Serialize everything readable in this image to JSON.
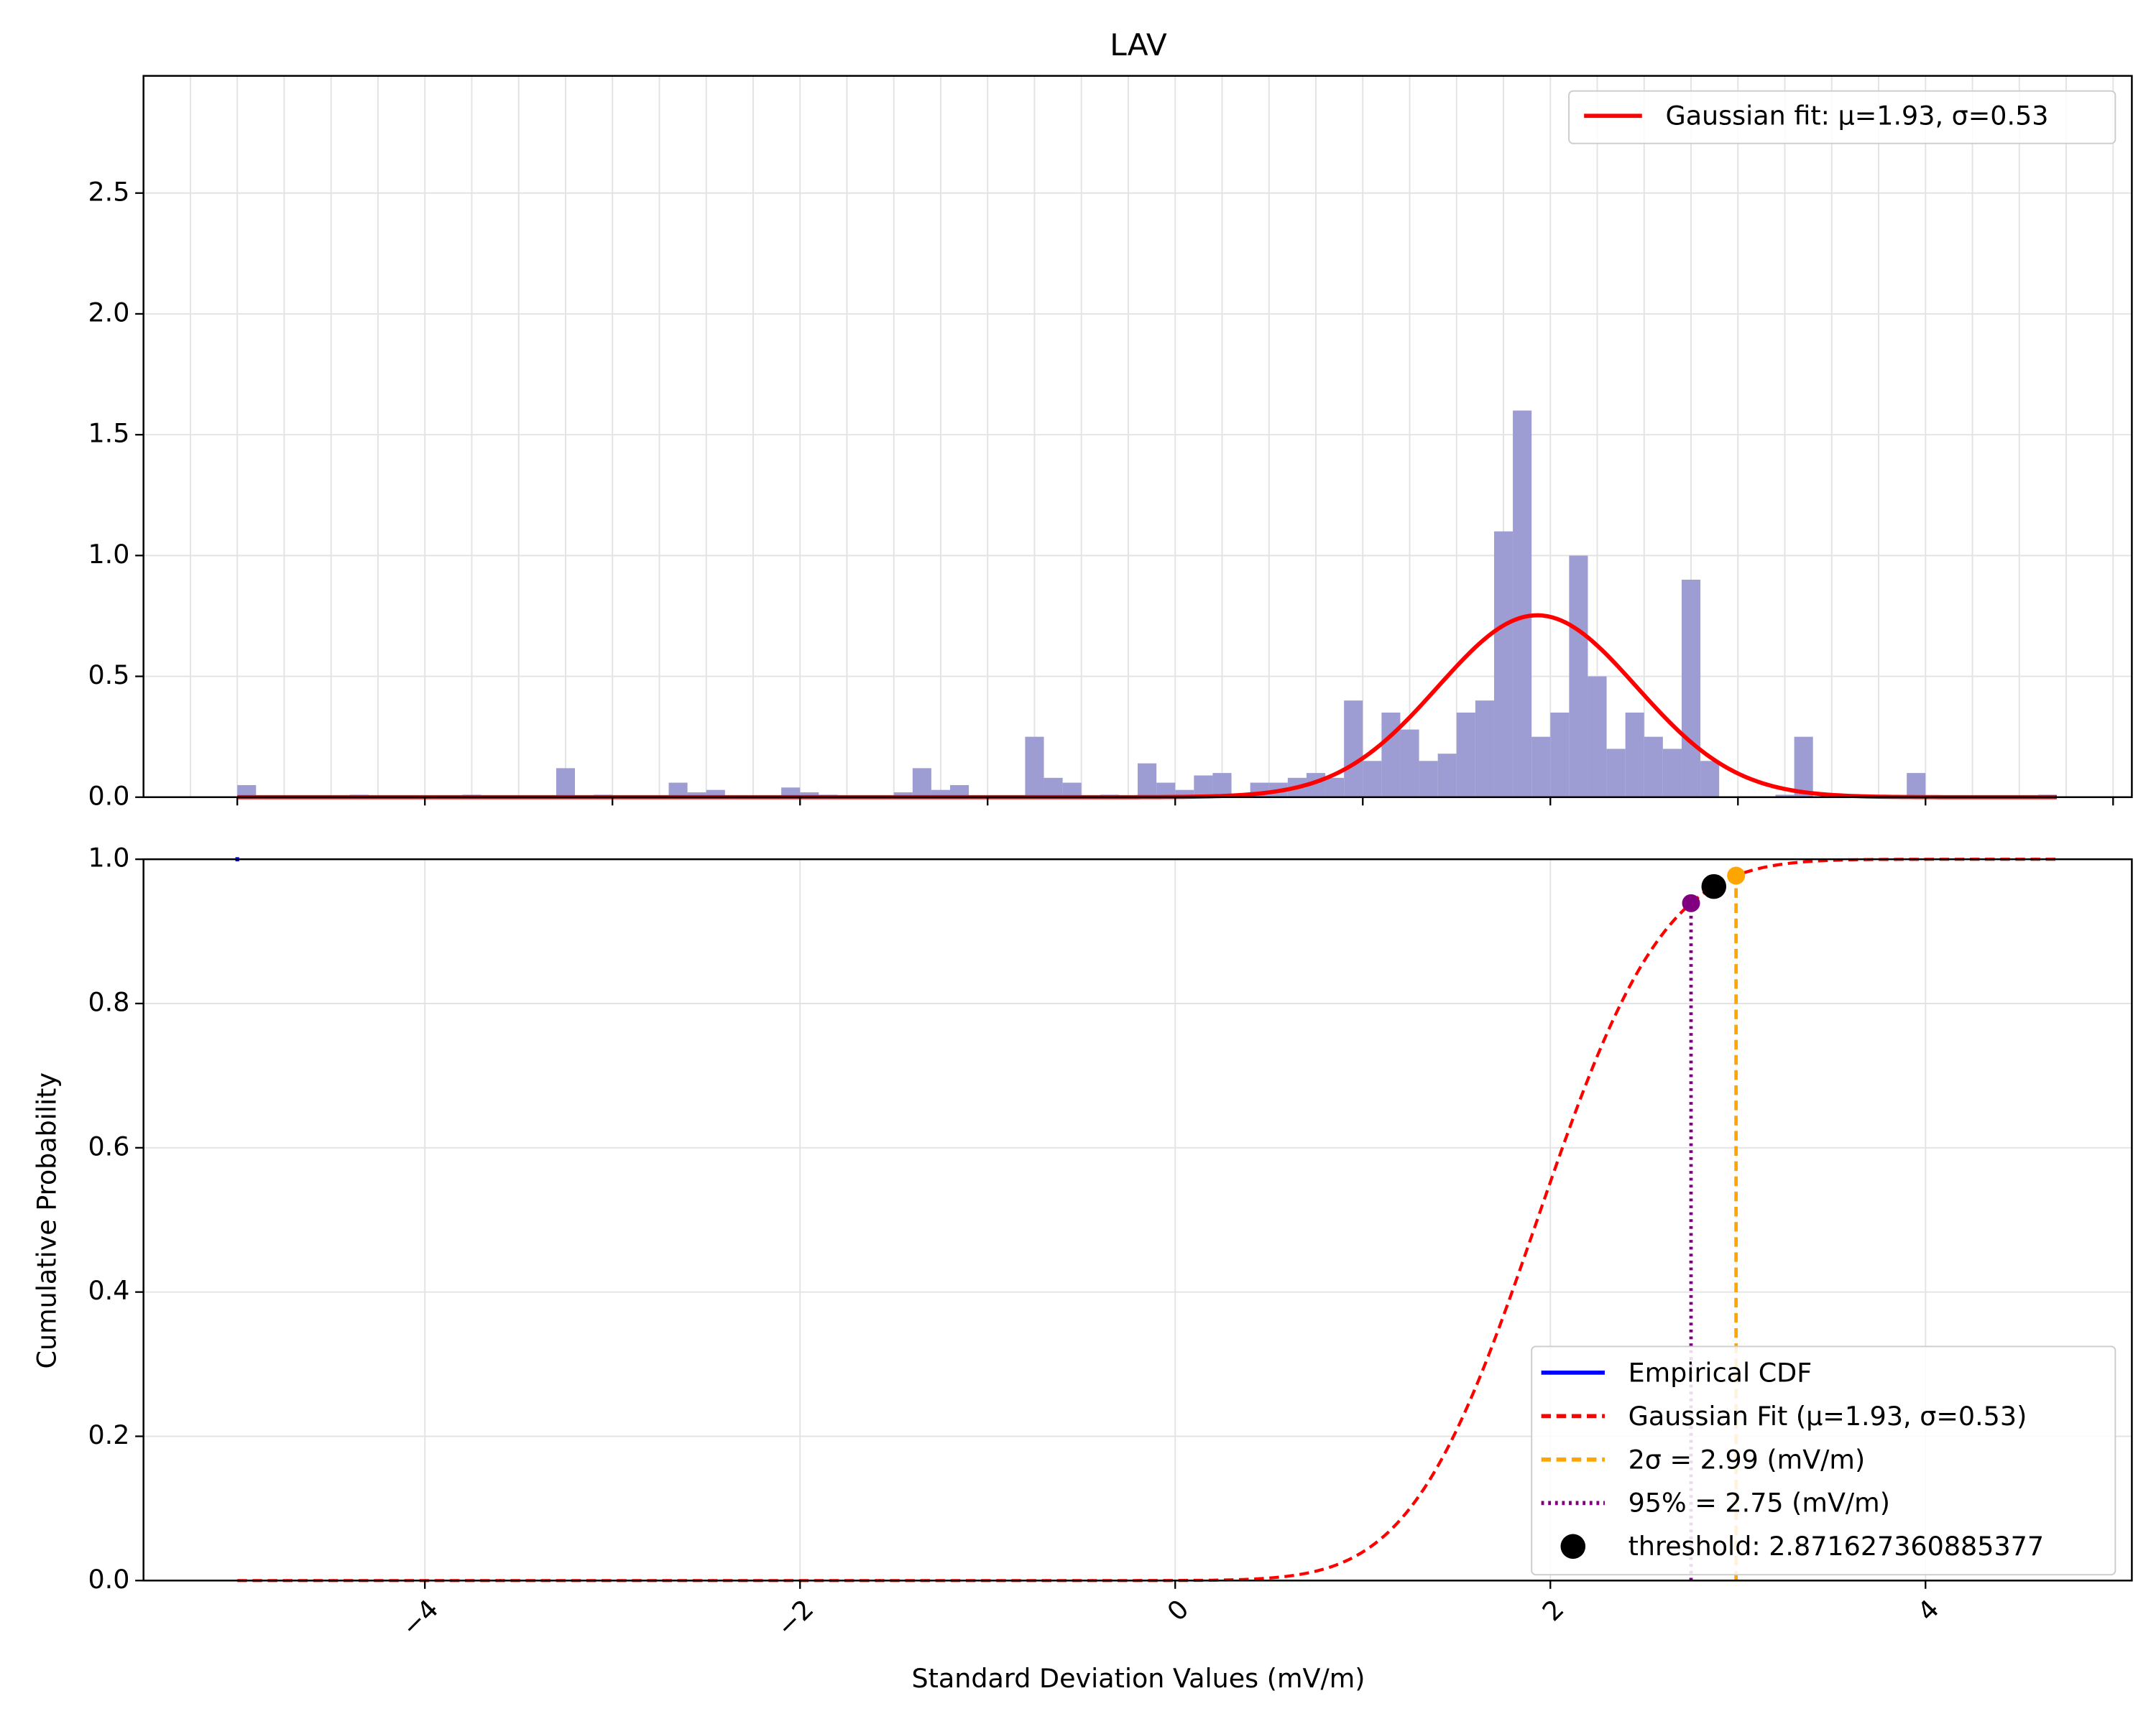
{
  "chart_data": [
    {
      "type": "histogram",
      "title": "LAV",
      "bins": [
        -5,
        -4.9,
        -4.8,
        -4.7,
        -4.6,
        -4.5,
        -4.4,
        -4.3,
        -4.2,
        -4.1,
        -4,
        -3.9,
        -3.8,
        -3.7,
        -3.6,
        -3.5,
        -3.4,
        -3.3,
        -3.2,
        -3.1,
        -3,
        -2.9,
        -2.8,
        -2.7,
        -2.6,
        -2.5,
        -2.4,
        -2.3,
        -2.2,
        -2.1,
        -2,
        -1.9,
        -1.8,
        -1.7,
        -1.6,
        -1.5,
        -1.4,
        -1.3,
        -1.2,
        -1.1,
        -1,
        -0.9,
        -0.8,
        -0.7,
        -0.6,
        -0.5,
        -0.4,
        -0.3,
        -0.2,
        -0.1,
        0,
        0.1,
        0.2,
        0.3,
        0.4,
        0.5,
        0.6,
        0.7,
        0.8,
        0.9,
        1,
        1.1,
        1.2,
        1.3,
        1.4,
        1.5,
        1.6,
        1.7,
        1.8,
        1.9,
        2,
        2.1,
        2.2,
        2.3,
        2.4,
        2.5,
        2.6,
        2.7,
        2.8,
        2.9,
        3,
        3.1,
        3.2,
        3.3,
        3.4,
        3.5,
        3.6,
        3.7,
        3.8,
        3.9,
        4,
        4.1,
        4.2,
        4.3,
        4.4,
        4.5,
        4.6,
        4.7
      ],
      "counts": [
        0.05,
        0,
        0,
        0,
        0,
        0,
        0.01,
        0,
        0,
        0,
        0,
        0,
        0.01,
        0,
        0,
        0,
        0,
        0.12,
        0,
        0.01,
        0,
        0,
        0,
        0.06,
        0.02,
        0.03,
        0,
        0,
        0,
        0.04,
        0.02,
        0.01,
        0,
        0,
        0,
        0.02,
        0.12,
        0.03,
        0.05,
        0,
        0,
        0,
        0.25,
        0.08,
        0.06,
        0,
        0.01,
        0,
        0.14,
        0.06,
        0.03,
        0.09,
        0.1,
        0,
        0.06,
        0.06,
        0.08,
        0.1,
        0.08,
        0.4,
        0.15,
        0.35,
        0.28,
        0.15,
        0.18,
        0.35,
        0.4,
        1.1,
        1.6,
        0.25,
        0.35,
        1.0,
        0.5,
        0.2,
        0.35,
        0.25,
        0.2,
        0.9,
        0.15,
        0,
        0,
        0,
        0.01,
        0.25,
        0,
        0,
        0,
        0,
        0,
        0.1,
        0,
        0,
        0,
        0,
        0,
        0,
        0.01
      ],
      "color": "#9d9dd3",
      "fit": {
        "name": "Gaussian fit: μ=1.93, σ=0.53",
        "mu": 1.93,
        "sigma": 0.53,
        "color": "#ff0000"
      },
      "xlim": [
        -5.5,
        5.1
      ],
      "xticks": [
        -5,
        -4,
        -3,
        -2,
        -1,
        0,
        1,
        2,
        3,
        4,
        5
      ],
      "xgrid": [
        -5.25,
        -5,
        -4.75,
        -4.5,
        -4.25,
        -4,
        -3.75,
        -3.5,
        -3.25,
        -3,
        -2.75,
        -2.5,
        -2.25,
        -2,
        -1.75,
        -1.5,
        -1.25,
        -1,
        -0.75,
        -0.5,
        -0.25,
        0,
        0.25,
        0.5,
        0.75,
        1,
        1.25,
        1.5,
        1.75,
        2,
        2.25,
        2.5,
        2.75,
        3,
        3.25,
        3.5,
        3.75,
        4,
        4.25,
        4.5,
        4.75,
        5
      ],
      "ylim": [
        0,
        2.985
      ],
      "yticks": [
        {
          "value": 0,
          "label": "0.0"
        },
        0.5,
        {
          "value": 1,
          "label": "1.0"
        },
        1.5,
        {
          "value": 2,
          "label": "2.0"
        },
        2.5
      ],
      "grid": true,
      "legend": "upper right"
    },
    {
      "type": "cdf",
      "xlabel": "Standard Deviation Values (mV/m)",
      "ylabel": "Cumulative Probability",
      "xlim": [
        -5.5,
        5.1
      ],
      "xticks": [
        {
          "value": -4,
          "label": "−4"
        },
        {
          "value": -2,
          "label": "−2"
        },
        0,
        2,
        4
      ],
      "ylim": [
        0,
        1
      ],
      "yticks": [
        {
          "value": 0,
          "label": "0.0"
        },
        0.2,
        0.4,
        0.6,
        0.8,
        {
          "value": 1,
          "label": "1.0"
        }
      ],
      "grid": true,
      "legend": "lower right",
      "series": [
        {
          "name": "Empirical CDF",
          "color": "#0000ff",
          "style": "solid",
          "x": [
            -5.01,
            -4.99
          ],
          "values": [
            1,
            1
          ]
        },
        {
          "name": "Gaussian Fit (μ=1.93, σ=0.53)",
          "color": "#ff0000",
          "style": "dashed",
          "mu": 1.93,
          "sigma": 0.53
        },
        {
          "name": "2σ = 2.99 (mV/m)",
          "color": "#ffa500",
          "style": "dashed",
          "x": 2.99
        },
        {
          "name": "95% = 2.75 (mV/m)",
          "color": "#800080",
          "style": "dotted",
          "x": 2.75
        },
        {
          "name": "threshold: 2.871627360885377",
          "color": "#000000",
          "style": "marker",
          "x": 2.871627360885377
        }
      ]
    }
  ]
}
